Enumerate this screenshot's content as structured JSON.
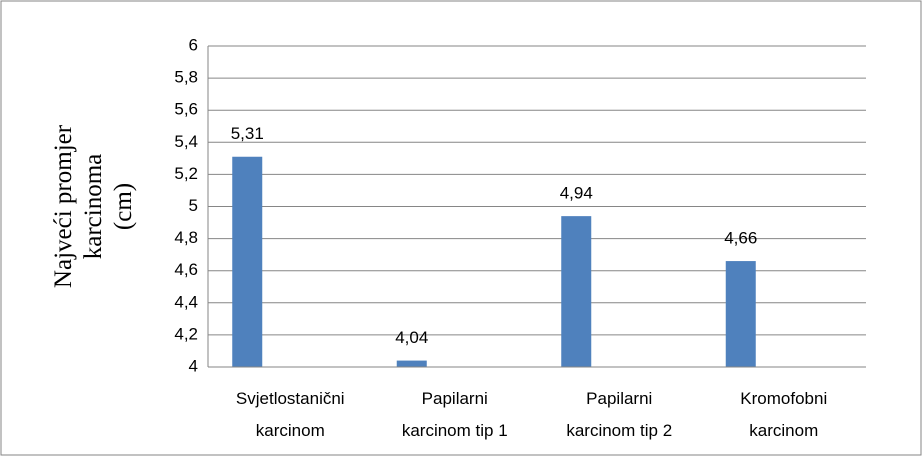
{
  "chart_data": {
    "type": "bar",
    "ylabel": [
      "Najveći promjer",
      "karcinoma",
      "(cm)"
    ],
    "categories": [
      "Svjetlostanični karcinom",
      "Papilarni karcinom tip 1",
      "Papilarni karcinom tip 2",
      "Kromofobni karcinom"
    ],
    "values": [
      5.31,
      4.04,
      4.94,
      4.66
    ],
    "value_labels": [
      "5,31",
      "4,04",
      "4,94",
      "4,66"
    ],
    "color": "#4f81bd",
    "ylim": [
      4,
      6
    ],
    "yticks": [
      4,
      {
        "value": 4.2,
        "label": "4,2"
      },
      {
        "value": 4.4,
        "label": "4,4"
      },
      {
        "value": 4.6,
        "label": "4,6"
      },
      {
        "value": 4.8,
        "label": "4,8"
      },
      5,
      {
        "value": 5.2,
        "label": "5,2"
      },
      {
        "value": 5.4,
        "label": "5,4"
      },
      {
        "value": 5.6,
        "label": "5,6"
      },
      {
        "value": 5.8,
        "label": "5,8"
      },
      6
    ],
    "grid": true
  }
}
